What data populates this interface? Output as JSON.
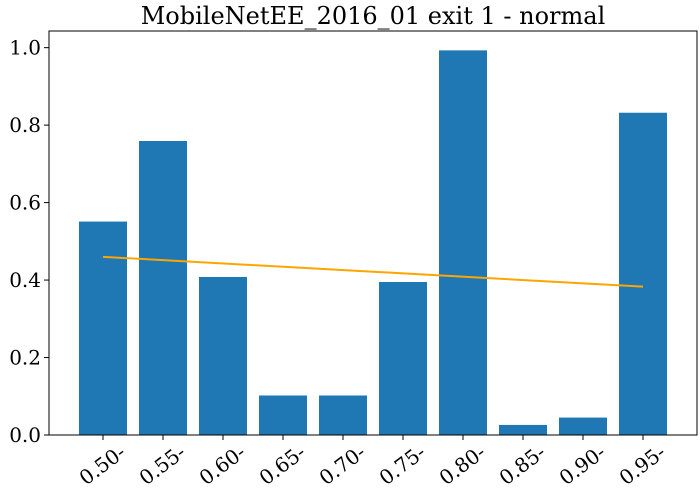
{
  "chart_data": {
    "type": "bar",
    "title": "MobileNetEE_2016_01 exit 1 - normal",
    "xlabel": "",
    "ylabel": "",
    "categories": [
      "0.50-",
      "0.55-",
      "0.60-",
      "0.65-",
      "0.70-",
      "0.75-",
      "0.80-",
      "0.85-",
      "0.90-",
      "0.95-"
    ],
    "values": [
      0.551,
      0.759,
      0.408,
      0.102,
      0.102,
      0.395,
      0.993,
      0.026,
      0.045,
      0.832
    ],
    "trend_line": {
      "start": 0.46,
      "end": 0.383
    },
    "yticks": [
      "0.0",
      "0.2",
      "0.4",
      "0.6",
      "0.8",
      "1.0"
    ],
    "ylim": [
      0,
      1.043
    ],
    "grid": false,
    "legend": "none",
    "colors": {
      "bar": "#1f77b4",
      "trend": "#ffa500",
      "axis": "#000000"
    }
  }
}
